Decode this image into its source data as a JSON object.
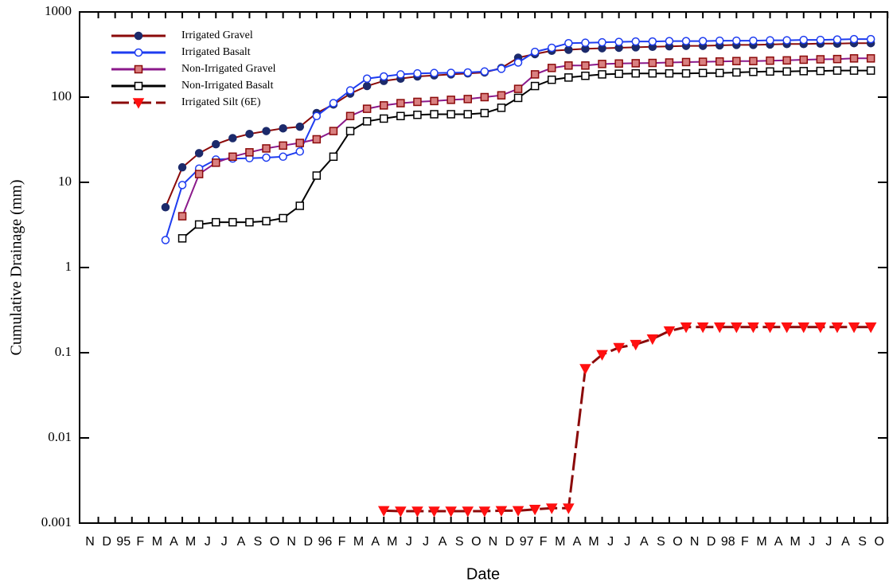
{
  "chart_data": {
    "type": "line",
    "y_label": "Cumulative Drainage (mm)",
    "x_label": "Date",
    "log_scale_y": true,
    "legend_position": "top-left",
    "categories": [
      "N",
      "D",
      "95",
      "F",
      "M",
      "A",
      "M",
      "J",
      "J",
      "A",
      "S",
      "O",
      "N",
      "D",
      "96",
      "F",
      "M",
      "A",
      "M",
      "J",
      "J",
      "A",
      "S",
      "O",
      "N",
      "D",
      "97",
      "F",
      "M",
      "A",
      "M",
      "J",
      "J",
      "A",
      "S",
      "O",
      "N",
      "D",
      "98",
      "F",
      "M",
      "A",
      "M",
      "J",
      "J",
      "A",
      "S",
      "O"
    ],
    "ylim": [
      0.001,
      1000
    ],
    "yticks": [
      0.001,
      0.01,
      0.1,
      1,
      10,
      100,
      1000
    ],
    "series": [
      {
        "name": "Irrigated Gravel",
        "color": "#8b0a0a",
        "marker": "circle",
        "marker_fill": "#1c2a6b",
        "marker_stroke": "#1c2a6b",
        "dashed": false,
        "values": [
          null,
          null,
          null,
          null,
          5.1,
          15,
          22,
          28,
          33,
          37,
          40,
          43,
          45,
          65,
          82,
          110,
          135,
          155,
          165,
          175,
          180,
          185,
          190,
          195,
          220,
          290,
          320,
          350,
          360,
          370,
          375,
          380,
          385,
          390,
          395,
          400,
          400,
          405,
          410,
          410,
          415,
          420,
          420,
          425,
          425,
          430,
          430,
          null
        ]
      },
      {
        "name": "Irrigated Basalt",
        "color": "#1e3cf0",
        "marker": "circle",
        "marker_fill": "#ffffff",
        "marker_stroke": "#1e3cf0",
        "dashed": false,
        "values": [
          null,
          null,
          null,
          null,
          2.1,
          9.3,
          14.5,
          18.5,
          19,
          19.2,
          19.5,
          20,
          23,
          60,
          85,
          120,
          165,
          175,
          185,
          190,
          192,
          193,
          195,
          200,
          215,
          255,
          340,
          380,
          430,
          435,
          440,
          445,
          450,
          450,
          455,
          455,
          455,
          460,
          460,
          460,
          465,
          465,
          470,
          470,
          475,
          480,
          480,
          null
        ]
      },
      {
        "name": "Non-Irrigated Gravel",
        "color": "#8b1a8b",
        "marker": "square",
        "marker_fill": "#d98080",
        "marker_stroke": "#8b0a0a",
        "dashed": false,
        "values": [
          null,
          null,
          null,
          null,
          null,
          4,
          12.5,
          17,
          20,
          22.5,
          25,
          27,
          29,
          32,
          40,
          60,
          73,
          80,
          85,
          88,
          90,
          93,
          95,
          100,
          105,
          125,
          185,
          220,
          235,
          235,
          245,
          248,
          250,
          252,
          255,
          258,
          260,
          262,
          265,
          265,
          268,
          270,
          275,
          278,
          280,
          285,
          285,
          null
        ]
      },
      {
        "name": "Non-Irrigated Basalt",
        "color": "#000000",
        "marker": "square",
        "marker_fill": "#ffffff",
        "marker_stroke": "#000000",
        "dashed": false,
        "values": [
          null,
          null,
          null,
          null,
          null,
          2.2,
          3.2,
          3.4,
          3.4,
          3.4,
          3.5,
          3.8,
          5.3,
          12,
          20,
          40,
          52,
          56,
          60,
          62,
          63,
          63,
          63,
          65,
          75,
          98,
          135,
          160,
          170,
          178,
          185,
          188,
          190,
          190,
          190,
          190,
          192,
          192,
          195,
          198,
          200,
          200,
          202,
          203,
          205,
          205,
          205,
          null
        ]
      },
      {
        "name": "Irrigated Silt (6E)",
        "color": "#8b0a0a",
        "marker": "triangle-down",
        "marker_fill": "#ff1010",
        "marker_stroke": "#ff1010",
        "dashed": true,
        "values": [
          null,
          null,
          null,
          null,
          null,
          null,
          null,
          null,
          null,
          null,
          null,
          null,
          null,
          null,
          null,
          null,
          null,
          0.0014,
          0.00138,
          0.00138,
          0.00138,
          0.00138,
          0.00138,
          0.00138,
          0.0014,
          0.0014,
          0.00145,
          0.0015,
          0.0015,
          0.065,
          0.095,
          0.115,
          0.125,
          0.145,
          0.18,
          0.2,
          0.2,
          0.2,
          0.2,
          0.2,
          0.2,
          0.2,
          0.2,
          0.2,
          0.2,
          0.2,
          0.2,
          null
        ]
      }
    ]
  }
}
